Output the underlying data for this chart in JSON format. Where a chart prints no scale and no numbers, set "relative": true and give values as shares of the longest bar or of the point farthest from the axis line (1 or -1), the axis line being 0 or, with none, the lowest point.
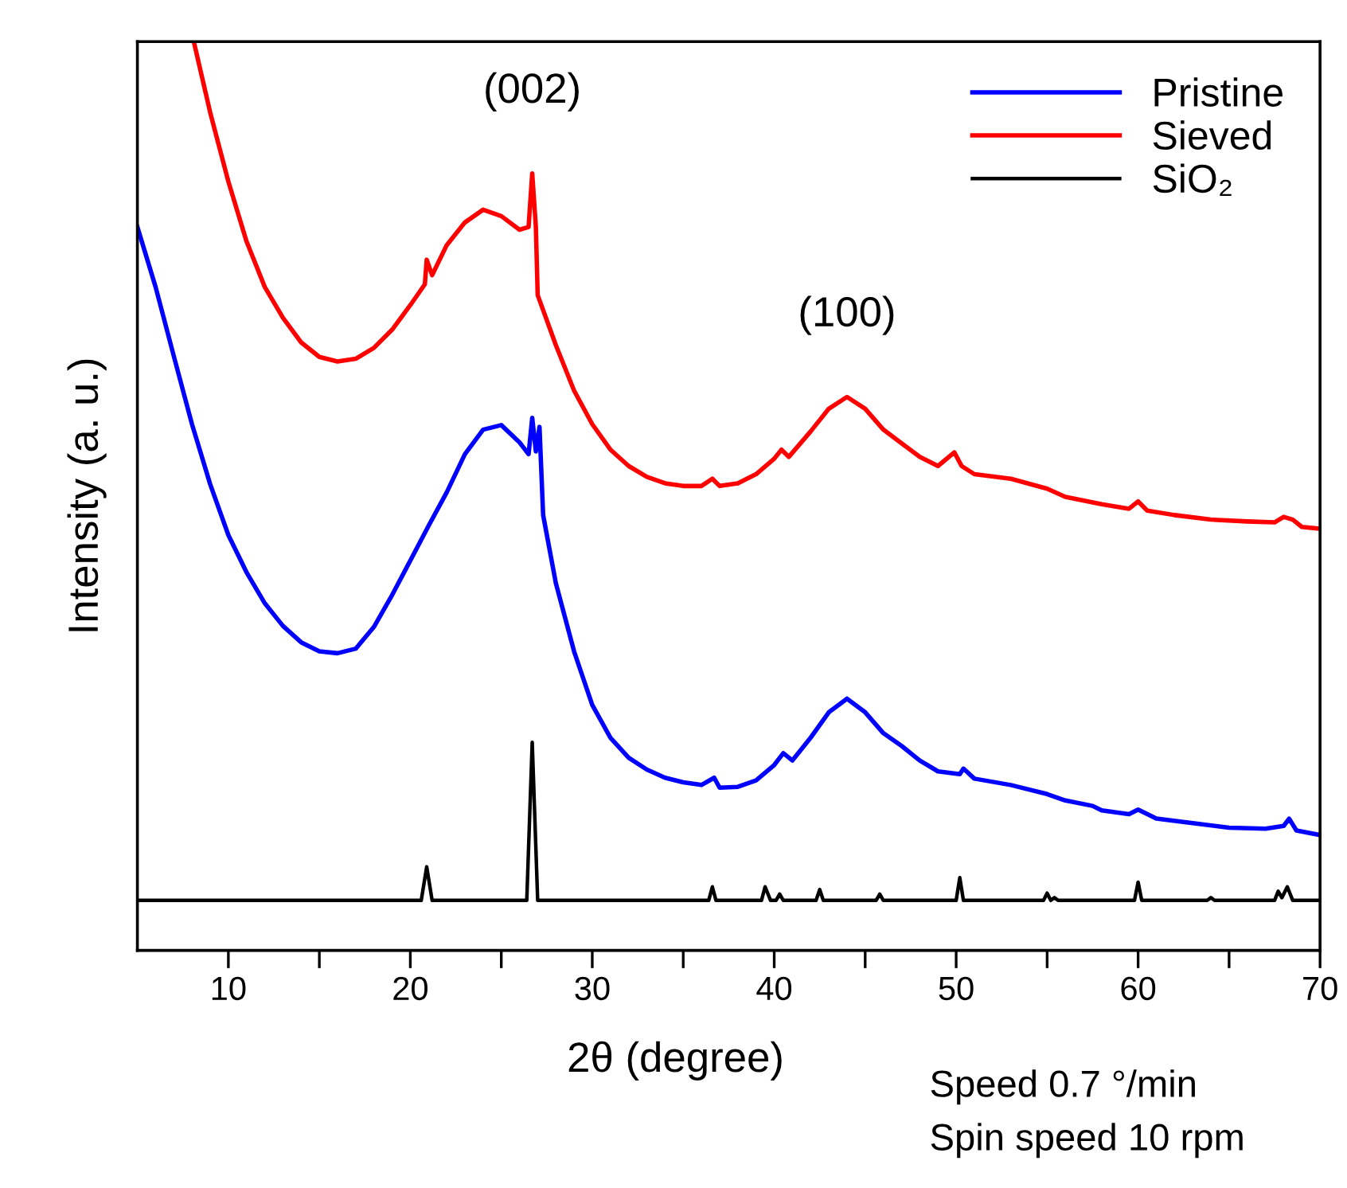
{
  "chart_data": {
    "type": "line",
    "relative": true,
    "xlabel": "2θ (degree)",
    "ylabel": "Intensity (a. u.)",
    "xlim": [
      5,
      70
    ],
    "xticks": [
      10,
      {
        "value": 15,
        "label": null
      },
      20,
      {
        "value": 25,
        "label": null
      },
      30,
      {
        "value": 35,
        "label": null
      },
      40,
      {
        "value": 45,
        "label": null
      },
      50,
      {
        "value": 55,
        "label": null
      },
      60,
      {
        "value": 65,
        "label": null
      },
      70
    ],
    "tick_labels": "x",
    "grid": false,
    "legend": "top right",
    "marker": "none",
    "line_style": "solid",
    "annotations": [
      {
        "text": "(002)",
        "x": 26.7,
        "y": 0.855
      },
      {
        "text": "(100)",
        "x": 44,
        "y": 0.609
      },
      "Speed 0.7 °/min",
      "Spin speed 10 rpm"
    ],
    "series": [
      {
        "name": "Pristine",
        "color": "#0000ff",
        "x": [
          5,
          6,
          7,
          8,
          9,
          10,
          11,
          12,
          13,
          14,
          15,
          16,
          17,
          18,
          19,
          20,
          21,
          22,
          23,
          24,
          25,
          26,
          26.5,
          26.7,
          26.9,
          27.1,
          27.3,
          28,
          29,
          30,
          31,
          32,
          33,
          34,
          35,
          36,
          36.7,
          37,
          38,
          39,
          40,
          40.5,
          41,
          42,
          43,
          44,
          45,
          46,
          47,
          48,
          49,
          50.2,
          50.4,
          51,
          53,
          55,
          56,
          57.5,
          58,
          59.5,
          60,
          61,
          63,
          65,
          67,
          68,
          68.3,
          68.7,
          70
        ],
        "values": [
          0.796,
          0.73,
          0.654,
          0.579,
          0.513,
          0.457,
          0.416,
          0.382,
          0.357,
          0.339,
          0.329,
          0.327,
          0.332,
          0.356,
          0.391,
          0.429,
          0.467,
          0.504,
          0.546,
          0.573,
          0.578,
          0.559,
          0.546,
          0.586,
          0.549,
          0.576,
          0.479,
          0.404,
          0.329,
          0.27,
          0.234,
          0.212,
          0.199,
          0.19,
          0.185,
          0.182,
          0.19,
          0.179,
          0.18,
          0.187,
          0.204,
          0.217,
          0.209,
          0.234,
          0.262,
          0.277,
          0.262,
          0.239,
          0.225,
          0.209,
          0.197,
          0.194,
          0.2,
          0.189,
          0.182,
          0.172,
          0.165,
          0.159,
          0.154,
          0.15,
          0.155,
          0.145,
          0.14,
          0.135,
          0.134,
          0.137,
          0.145,
          0.132,
          0.127
        ]
      },
      {
        "name": "Sieved",
        "color": "#ff0000",
        "x": [
          8.1,
          9,
          10,
          11,
          12,
          13,
          14,
          15,
          16,
          17,
          18,
          19,
          20,
          20.8,
          20.9,
          21.2,
          22,
          23,
          24,
          25,
          26,
          26.5,
          26.7,
          26.9,
          27,
          28,
          29,
          30,
          31,
          32,
          33,
          34,
          35,
          36,
          36.6,
          37,
          38,
          39,
          40,
          40.4,
          40.8,
          42,
          43,
          44,
          45,
          46,
          47,
          48,
          49,
          49.9,
          50.3,
          51,
          53,
          55,
          56,
          58,
          59.5,
          60,
          60.5,
          62,
          64,
          66,
          67.5,
          68,
          68.5,
          69,
          70
        ],
        "values": [
          1.0,
          0.922,
          0.846,
          0.78,
          0.73,
          0.696,
          0.669,
          0.653,
          0.648,
          0.651,
          0.663,
          0.683,
          0.71,
          0.733,
          0.76,
          0.743,
          0.776,
          0.801,
          0.815,
          0.808,
          0.793,
          0.796,
          0.855,
          0.796,
          0.721,
          0.666,
          0.616,
          0.579,
          0.551,
          0.533,
          0.521,
          0.514,
          0.511,
          0.511,
          0.519,
          0.511,
          0.514,
          0.524,
          0.541,
          0.551,
          0.543,
          0.571,
          0.596,
          0.609,
          0.596,
          0.573,
          0.558,
          0.543,
          0.533,
          0.548,
          0.533,
          0.524,
          0.519,
          0.508,
          0.499,
          0.491,
          0.486,
          0.494,
          0.484,
          0.479,
          0.474,
          0.472,
          0.471,
          0.477,
          0.474,
          0.466,
          0.464
        ]
      },
      {
        "name": "SiO₂",
        "color": "#000000",
        "x": [
          5,
          20.6,
          20.9,
          21.2,
          26.4,
          26.7,
          27.0,
          36.4,
          36.6,
          36.8,
          39.3,
          39.5,
          39.8,
          40.1,
          40.3,
          40.5,
          42.3,
          42.5,
          42.7,
          45.6,
          45.8,
          46.0,
          50.0,
          50.2,
          50.4,
          54.8,
          55.0,
          55.2,
          55.4,
          55.6,
          59.8,
          60.0,
          60.2,
          63.8,
          64.0,
          64.2,
          67.5,
          67.7,
          67.9,
          68.2,
          68.5,
          70
        ],
        "values": [
          0.055,
          0.055,
          0.092,
          0.055,
          0.055,
          0.229,
          0.055,
          0.055,
          0.07,
          0.055,
          0.055,
          0.07,
          0.055,
          0.055,
          0.062,
          0.055,
          0.055,
          0.067,
          0.055,
          0.055,
          0.062,
          0.055,
          0.055,
          0.08,
          0.055,
          0.055,
          0.063,
          0.055,
          0.058,
          0.055,
          0.055,
          0.075,
          0.055,
          0.055,
          0.058,
          0.055,
          0.055,
          0.065,
          0.058,
          0.07,
          0.055,
          0.055
        ]
      }
    ]
  }
}
